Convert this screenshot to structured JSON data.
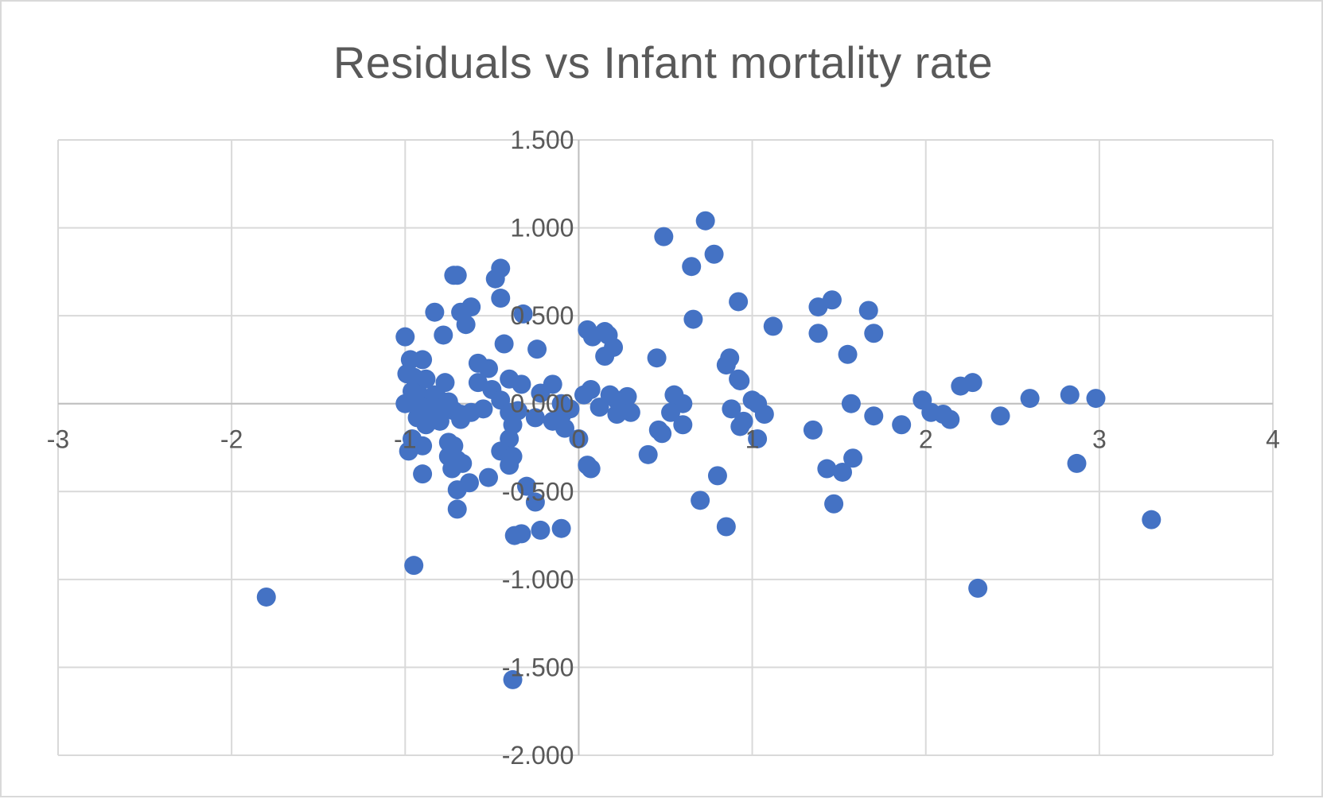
{
  "chart_data": {
    "type": "scatter",
    "title": "Residuals vs Infant mortality rate",
    "xlabel": "",
    "ylabel": "",
    "xlim": [
      -3,
      4
    ],
    "ylim": [
      -2,
      1.5
    ],
    "x_ticks": [
      "-3",
      "-2",
      "-1",
      "0",
      "1",
      "2",
      "3",
      "4"
    ],
    "y_ticks": [
      "1.500",
      "1.000",
      "0.500",
      "0.000",
      "-0.500",
      "-1.000",
      "-1.500",
      "-2.000"
    ],
    "grid": true,
    "legend": "none",
    "marker_color": "#4472C4",
    "points": [
      [
        -1.8,
        -1.1
      ],
      [
        -0.95,
        -0.92
      ],
      [
        -0.72,
        0.73
      ],
      [
        -0.7,
        0.73
      ],
      [
        -0.45,
        0.77
      ],
      [
        -0.48,
        0.71
      ],
      [
        -0.45,
        0.6
      ],
      [
        -0.32,
        0.51
      ],
      [
        -0.62,
        0.55
      ],
      [
        -0.68,
        0.52
      ],
      [
        -0.83,
        0.52
      ],
      [
        -0.65,
        0.45
      ],
      [
        -0.78,
        0.39
      ],
      [
        -1.0,
        0.38
      ],
      [
        -0.43,
        0.34
      ],
      [
        -0.24,
        0.31
      ],
      [
        -0.97,
        0.25
      ],
      [
        -0.9,
        0.25
      ],
      [
        -0.58,
        0.23
      ],
      [
        -0.52,
        0.2
      ],
      [
        -0.99,
        0.17
      ],
      [
        -0.88,
        0.14
      ],
      [
        -0.95,
        0.15
      ],
      [
        -0.77,
        0.12
      ],
      [
        -0.58,
        0.12
      ],
      [
        -0.4,
        0.14
      ],
      [
        -0.33,
        0.11
      ],
      [
        -0.15,
        0.11
      ],
      [
        -0.5,
        0.08
      ],
      [
        -0.22,
        0.06
      ],
      [
        -0.96,
        0.07
      ],
      [
        -0.92,
        0.05
      ],
      [
        -0.88,
        0.03
      ],
      [
        -0.83,
        0.05
      ],
      [
        -0.8,
        0.02
      ],
      [
        -0.75,
        0.01
      ],
      [
        -1.0,
        0.0
      ],
      [
        -0.95,
        0.0
      ],
      [
        -0.9,
        -0.02
      ],
      [
        -0.85,
        -0.03
      ],
      [
        -0.78,
        -0.02
      ],
      [
        -0.72,
        -0.04
      ],
      [
        -0.68,
        -0.06
      ],
      [
        -0.62,
        -0.05
      ],
      [
        -0.55,
        -0.03
      ],
      [
        -0.45,
        0.02
      ],
      [
        -0.4,
        -0.05
      ],
      [
        -0.35,
        -0.04
      ],
      [
        -0.25,
        -0.08
      ],
      [
        -0.1,
        0.0
      ],
      [
        -0.05,
        -0.03
      ],
      [
        -0.1,
        -0.07
      ],
      [
        -0.15,
        -0.1
      ],
      [
        -0.08,
        -0.14
      ],
      [
        -0.93,
        -0.08
      ],
      [
        -0.88,
        -0.12
      ],
      [
        -0.96,
        -0.2
      ],
      [
        -0.8,
        -0.1
      ],
      [
        -0.68,
        -0.09
      ],
      [
        -0.38,
        -0.12
      ],
      [
        -0.4,
        -0.2
      ],
      [
        -0.75,
        -0.22
      ],
      [
        -0.72,
        -0.24
      ],
      [
        -0.9,
        -0.24
      ],
      [
        -0.98,
        -0.27
      ],
      [
        -0.45,
        -0.27
      ],
      [
        -0.38,
        -0.3
      ],
      [
        -0.75,
        -0.3
      ],
      [
        -0.7,
        -0.32
      ],
      [
        -0.67,
        -0.34
      ],
      [
        -0.73,
        -0.37
      ],
      [
        -0.4,
        -0.35
      ],
      [
        -0.9,
        -0.4
      ],
      [
        -0.52,
        -0.42
      ],
      [
        -0.63,
        -0.45
      ],
      [
        -0.7,
        -0.49
      ],
      [
        -0.3,
        -0.47
      ],
      [
        -0.25,
        -0.56
      ],
      [
        -0.7,
        -0.6
      ],
      [
        -0.37,
        -0.75
      ],
      [
        -0.33,
        -0.74
      ],
      [
        -0.22,
        -0.72
      ],
      [
        -0.1,
        -0.71
      ],
      [
        0.05,
        -0.35
      ],
      [
        0.07,
        -0.37
      ],
      [
        0.0,
        -0.2
      ],
      [
        0.05,
        0.42
      ],
      [
        0.08,
        0.38
      ],
      [
        0.15,
        0.41
      ],
      [
        0.17,
        0.39
      ],
      [
        0.2,
        0.32
      ],
      [
        0.15,
        0.27
      ],
      [
        0.03,
        0.05
      ],
      [
        0.07,
        0.08
      ],
      [
        0.12,
        -0.02
      ],
      [
        0.18,
        0.05
      ],
      [
        0.22,
        0.02
      ],
      [
        0.28,
        0.04
      ],
      [
        0.22,
        -0.06
      ],
      [
        0.3,
        -0.05
      ],
      [
        0.4,
        -0.29
      ],
      [
        0.45,
        0.26
      ],
      [
        0.46,
        -0.15
      ],
      [
        0.48,
        -0.17
      ],
      [
        0.49,
        0.95
      ],
      [
        0.55,
        0.05
      ],
      [
        0.6,
        0.0
      ],
      [
        0.53,
        -0.05
      ],
      [
        0.6,
        -0.12
      ],
      [
        0.65,
        0.78
      ],
      [
        0.66,
        0.48
      ],
      [
        0.7,
        -0.55
      ],
      [
        0.73,
        1.04
      ],
      [
        0.78,
        0.85
      ],
      [
        0.8,
        -0.41
      ],
      [
        0.85,
        -0.7
      ],
      [
        0.85,
        0.22
      ],
      [
        0.87,
        0.26
      ],
      [
        0.88,
        -0.03
      ],
      [
        0.92,
        0.58
      ],
      [
        0.92,
        0.14
      ],
      [
        0.93,
        0.13
      ],
      [
        0.95,
        -0.1
      ],
      [
        0.93,
        -0.13
      ],
      [
        1.0,
        0.02
      ],
      [
        1.03,
        0.0
      ],
      [
        1.03,
        -0.2
      ],
      [
        1.07,
        -0.06
      ],
      [
        1.12,
        0.44
      ],
      [
        1.35,
        -0.15
      ],
      [
        1.38,
        0.55
      ],
      [
        1.38,
        0.4
      ],
      [
        1.43,
        -0.37
      ],
      [
        1.46,
        0.59
      ],
      [
        1.47,
        -0.57
      ],
      [
        1.52,
        -0.39
      ],
      [
        1.55,
        0.28
      ],
      [
        1.57,
        0.0
      ],
      [
        1.58,
        -0.31
      ],
      [
        1.67,
        0.53
      ],
      [
        1.7,
        0.4
      ],
      [
        1.7,
        -0.07
      ],
      [
        1.86,
        -0.12
      ],
      [
        1.98,
        0.02
      ],
      [
        2.03,
        -0.05
      ],
      [
        2.1,
        -0.06
      ],
      [
        2.14,
        -0.09
      ],
      [
        2.2,
        0.1
      ],
      [
        2.27,
        0.12
      ],
      [
        2.3,
        -1.05
      ],
      [
        2.43,
        -0.07
      ],
      [
        2.6,
        0.03
      ],
      [
        2.83,
        0.05
      ],
      [
        2.87,
        -0.34
      ],
      [
        2.98,
        0.03
      ],
      [
        3.3,
        -0.66
      ],
      [
        -0.38,
        -1.57
      ]
    ]
  }
}
